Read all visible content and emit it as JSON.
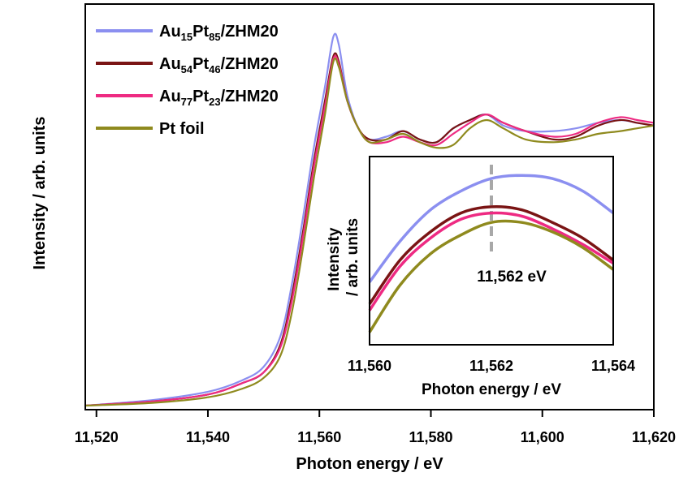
{
  "chart_data": [
    {
      "type": "line",
      "xlabel": "Photon energy / eV",
      "ylabel": "Intensity / arb. units",
      "xlim": [
        11518,
        11620
      ],
      "ylim": [
        0,
        1.34
      ],
      "xticks": [
        {
          "value": 11520,
          "label": "11,520"
        },
        {
          "value": 11540,
          "label": "11,540"
        },
        {
          "value": 11560,
          "label": "11,560"
        },
        {
          "value": 11580,
          "label": "11,580"
        },
        {
          "value": 11600,
          "label": "11,600"
        },
        {
          "value": 11620,
          "label": "11,620"
        }
      ],
      "yticks": [],
      "legend_position": "top-left",
      "series": [
        {
          "legend": [
            {
              "text": "Au",
              "sub": false
            },
            {
              "text": "15",
              "sub": true
            },
            {
              "text": "Pt",
              "sub": false
            },
            {
              "text": "85",
              "sub": true
            },
            {
              "text": "/ZHM20",
              "sub": false
            }
          ],
          "color": "#8b8ff0",
          "points": [
            [
              11518,
              0.0
            ],
            [
              11530,
              0.02
            ],
            [
              11540,
              0.05
            ],
            [
              11546,
              0.09
            ],
            [
              11550,
              0.14
            ],
            [
              11553,
              0.25
            ],
            [
              11555,
              0.43
            ],
            [
              11557,
              0.67
            ],
            [
              11559,
              0.93
            ],
            [
              11561,
              1.15
            ],
            [
              11562.5,
              1.33
            ],
            [
              11563.5,
              1.3
            ],
            [
              11565,
              1.12
            ],
            [
              11567,
              1.0
            ],
            [
              11569,
              0.96
            ],
            [
              11572,
              0.97
            ],
            [
              11575,
              0.99
            ],
            [
              11578,
              0.96
            ],
            [
              11581,
              0.95
            ],
            [
              11584,
              1.0
            ],
            [
              11587,
              1.03
            ],
            [
              11590,
              1.05
            ],
            [
              11593,
              1.01
            ],
            [
              11597,
              0.99
            ],
            [
              11602,
              0.99
            ],
            [
              11606,
              1.0
            ],
            [
              11610,
              1.02
            ],
            [
              11614,
              1.03
            ],
            [
              11617,
              1.02
            ],
            [
              11620,
              1.01
            ]
          ]
        },
        {
          "legend": [
            {
              "text": "Au",
              "sub": false
            },
            {
              "text": "54",
              "sub": true
            },
            {
              "text": "Pt",
              "sub": false
            },
            {
              "text": "46",
              "sub": true
            },
            {
              "text": "/ZHM20",
              "sub": false
            }
          ],
          "color": "#7a1414",
          "points": [
            [
              11518,
              0.0
            ],
            [
              11530,
              0.015
            ],
            [
              11540,
              0.04
            ],
            [
              11546,
              0.08
            ],
            [
              11550,
              0.12
            ],
            [
              11553,
              0.22
            ],
            [
              11555,
              0.39
            ],
            [
              11557,
              0.62
            ],
            [
              11559,
              0.88
            ],
            [
              11561,
              1.1
            ],
            [
              11562.5,
              1.26
            ],
            [
              11563.5,
              1.24
            ],
            [
              11565,
              1.1
            ],
            [
              11567,
              1.0
            ],
            [
              11569,
              0.96
            ],
            [
              11572,
              0.96
            ],
            [
              11575,
              0.99
            ],
            [
              11578,
              0.96
            ],
            [
              11581,
              0.95
            ],
            [
              11584,
              1.0
            ],
            [
              11587,
              1.03
            ],
            [
              11590,
              1.05
            ],
            [
              11593,
              1.02
            ],
            [
              11597,
              0.99
            ],
            [
              11602,
              0.96
            ],
            [
              11606,
              0.97
            ],
            [
              11610,
              1.01
            ],
            [
              11614,
              1.03
            ],
            [
              11617,
              1.02
            ],
            [
              11620,
              1.01
            ]
          ]
        },
        {
          "legend": [
            {
              "text": "Au",
              "sub": false
            },
            {
              "text": "77",
              "sub": true
            },
            {
              "text": "Pt",
              "sub": false
            },
            {
              "text": "23",
              "sub": true
            },
            {
              "text": "/ZHM20",
              "sub": false
            }
          ],
          "color": "#ee2a82",
          "points": [
            [
              11518,
              0.0
            ],
            [
              11530,
              0.015
            ],
            [
              11540,
              0.04
            ],
            [
              11546,
              0.08
            ],
            [
              11550,
              0.12
            ],
            [
              11553,
              0.21
            ],
            [
              11555,
              0.37
            ],
            [
              11557,
              0.6
            ],
            [
              11559,
              0.86
            ],
            [
              11561,
              1.08
            ],
            [
              11562.5,
              1.25
            ],
            [
              11563.5,
              1.23
            ],
            [
              11565,
              1.1
            ],
            [
              11567,
              1.0
            ],
            [
              11569,
              0.95
            ],
            [
              11572,
              0.95
            ],
            [
              11575,
              0.97
            ],
            [
              11578,
              0.95
            ],
            [
              11581,
              0.94
            ],
            [
              11584,
              0.98
            ],
            [
              11587,
              1.02
            ],
            [
              11590,
              1.05
            ],
            [
              11593,
              1.02
            ],
            [
              11597,
              0.99
            ],
            [
              11602,
              0.97
            ],
            [
              11606,
              0.98
            ],
            [
              11610,
              1.02
            ],
            [
              11614,
              1.04
            ],
            [
              11617,
              1.03
            ],
            [
              11620,
              1.02
            ]
          ]
        },
        {
          "legend": [
            {
              "text": "Pt foil",
              "sub": false
            }
          ],
          "color": "#8f8a1e",
          "points": [
            [
              11518,
              0.0
            ],
            [
              11530,
              0.01
            ],
            [
              11540,
              0.03
            ],
            [
              11546,
              0.06
            ],
            [
              11550,
              0.1
            ],
            [
              11553,
              0.18
            ],
            [
              11555,
              0.33
            ],
            [
              11557,
              0.56
            ],
            [
              11559,
              0.82
            ],
            [
              11561,
              1.05
            ],
            [
              11562.5,
              1.24
            ],
            [
              11563.5,
              1.22
            ],
            [
              11565,
              1.1
            ],
            [
              11567,
              1.0
            ],
            [
              11569,
              0.95
            ],
            [
              11572,
              0.96
            ],
            [
              11575,
              0.98
            ],
            [
              11578,
              0.95
            ],
            [
              11581,
              0.93
            ],
            [
              11584,
              0.94
            ],
            [
              11587,
              1.0
            ],
            [
              11590,
              1.03
            ],
            [
              11593,
              1.0
            ],
            [
              11597,
              0.96
            ],
            [
              11602,
              0.95
            ],
            [
              11606,
              0.96
            ],
            [
              11610,
              0.98
            ],
            [
              11614,
              0.99
            ],
            [
              11617,
              1.0
            ],
            [
              11620,
              1.01
            ]
          ]
        }
      ]
    },
    {
      "type": "line",
      "xlabel": "Photon energy / eV",
      "ylabel_lines": [
        "Intensity",
        "/ arb. units"
      ],
      "xlim": [
        11560,
        11564
      ],
      "ylim": [
        0.8,
        1.4
      ],
      "xticks": [
        {
          "value": 11560,
          "label": "11,560"
        },
        {
          "value": 11562,
          "label": "11,562"
        },
        {
          "value": 11564,
          "label": "11,564"
        }
      ],
      "annotation": {
        "text": "11,562 eV",
        "x": 11562
      },
      "series": [
        {
          "color": "#8b8ff0",
          "points": [
            [
              11560,
              1.0
            ],
            [
              11560.5,
              1.13
            ],
            [
              11561,
              1.23
            ],
            [
              11561.5,
              1.29
            ],
            [
              11562,
              1.33
            ],
            [
              11562.5,
              1.34
            ],
            [
              11563,
              1.33
            ],
            [
              11563.5,
              1.29
            ],
            [
              11564,
              1.22
            ]
          ]
        },
        {
          "color": "#7a1414",
          "points": [
            [
              11560,
              0.93
            ],
            [
              11560.5,
              1.07
            ],
            [
              11561,
              1.16
            ],
            [
              11561.5,
              1.22
            ],
            [
              11562,
              1.24
            ],
            [
              11562.5,
              1.23
            ],
            [
              11563,
              1.19
            ],
            [
              11563.5,
              1.14
            ],
            [
              11564,
              1.07
            ]
          ]
        },
        {
          "color": "#ee2a82",
          "points": [
            [
              11560,
              0.91
            ],
            [
              11560.5,
              1.05
            ],
            [
              11561,
              1.14
            ],
            [
              11561.5,
              1.2
            ],
            [
              11562,
              1.22
            ],
            [
              11562.5,
              1.21
            ],
            [
              11563,
              1.17
            ],
            [
              11563.5,
              1.12
            ],
            [
              11564,
              1.06
            ]
          ]
        },
        {
          "color": "#8f8a1e",
          "points": [
            [
              11560,
              0.84
            ],
            [
              11560.5,
              0.99
            ],
            [
              11561,
              1.09
            ],
            [
              11561.5,
              1.15
            ],
            [
              11562,
              1.19
            ],
            [
              11562.5,
              1.19
            ],
            [
              11563,
              1.16
            ],
            [
              11563.5,
              1.11
            ],
            [
              11564,
              1.04
            ]
          ]
        }
      ]
    }
  ]
}
